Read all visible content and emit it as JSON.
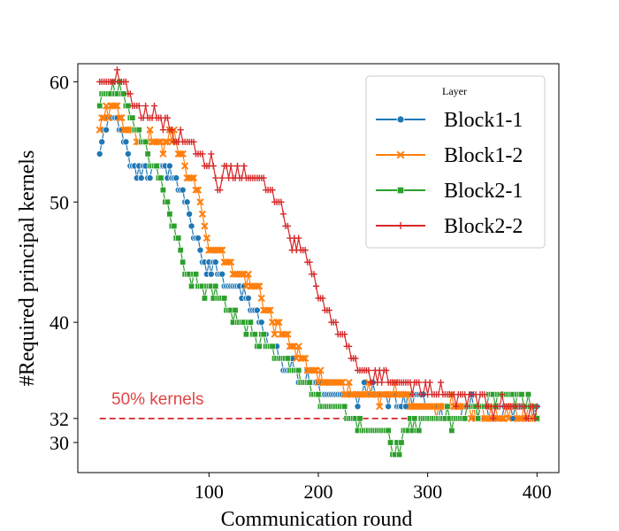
{
  "chart_data": {
    "type": "scatter",
    "title": "",
    "xlabel": "Communication round",
    "ylabel": "#Required principal kernels",
    "xlim": [
      -20,
      420
    ],
    "ylim": [
      27.5,
      61.5
    ],
    "xticks": [
      100,
      200,
      300,
      400
    ],
    "yticks": [
      30,
      32,
      40,
      50,
      60
    ],
    "legend": {
      "title": "Layer",
      "position": "top-right"
    },
    "reference_line": {
      "y": 32,
      "x_range": [
        0,
        400
      ],
      "label": "50% kernels",
      "color": "#d62728",
      "style": "dashed"
    },
    "series": [
      {
        "name": "Block1-1",
        "color": "#1f77b4",
        "marker": "circle",
        "keypoints": [
          [
            0,
            55
          ],
          [
            10,
            57
          ],
          [
            20,
            56
          ],
          [
            25,
            54
          ],
          [
            30,
            53
          ],
          [
            40,
            52
          ],
          [
            55,
            53
          ],
          [
            70,
            52
          ],
          [
            85,
            48
          ],
          [
            95,
            45
          ],
          [
            110,
            44
          ],
          [
            125,
            43
          ],
          [
            140,
            41
          ],
          [
            150,
            39
          ],
          [
            165,
            37
          ],
          [
            175,
            36
          ],
          [
            190,
            35
          ],
          [
            215,
            34
          ],
          [
            240,
            34
          ],
          [
            265,
            34
          ],
          [
            275,
            33
          ],
          [
            290,
            34
          ],
          [
            300,
            33
          ],
          [
            320,
            32
          ],
          [
            340,
            33
          ],
          [
            360,
            32
          ],
          [
            380,
            33
          ],
          [
            400,
            33
          ]
        ]
      },
      {
        "name": "Block1-2",
        "color": "#ff7f0e",
        "marker": "x",
        "keypoints": [
          [
            0,
            56
          ],
          [
            10,
            58
          ],
          [
            20,
            57
          ],
          [
            40,
            55
          ],
          [
            55,
            55
          ],
          [
            70,
            55
          ],
          [
            85,
            52
          ],
          [
            95,
            48
          ],
          [
            105,
            46
          ],
          [
            125,
            44
          ],
          [
            140,
            43
          ],
          [
            160,
            40
          ],
          [
            175,
            38
          ],
          [
            190,
            36
          ],
          [
            210,
            35
          ],
          [
            240,
            34
          ],
          [
            270,
            34
          ],
          [
            290,
            33
          ],
          [
            310,
            33
          ],
          [
            335,
            33
          ],
          [
            360,
            32
          ],
          [
            380,
            33
          ],
          [
            400,
            32
          ]
        ]
      },
      {
        "name": "Block2-1",
        "color": "#2ca02c",
        "marker": "square",
        "keypoints": [
          [
            0,
            58
          ],
          [
            15,
            60
          ],
          [
            25,
            58
          ],
          [
            40,
            55
          ],
          [
            50,
            53
          ],
          [
            60,
            50
          ],
          [
            70,
            47
          ],
          [
            80,
            44
          ],
          [
            90,
            43
          ],
          [
            110,
            42
          ],
          [
            125,
            40
          ],
          [
            140,
            39
          ],
          [
            155,
            38
          ],
          [
            165,
            37
          ],
          [
            180,
            36
          ],
          [
            195,
            34
          ],
          [
            205,
            33
          ],
          [
            220,
            33
          ],
          [
            235,
            32
          ],
          [
            245,
            31
          ],
          [
            260,
            31
          ],
          [
            270,
            29
          ],
          [
            280,
            31
          ],
          [
            295,
            32
          ],
          [
            310,
            32
          ],
          [
            330,
            32
          ],
          [
            350,
            33
          ],
          [
            370,
            34
          ],
          [
            385,
            34
          ],
          [
            400,
            33
          ]
        ]
      },
      {
        "name": "Block2-2",
        "color": "#d62728",
        "marker": "plus",
        "keypoints": [
          [
            0,
            60
          ],
          [
            20,
            60
          ],
          [
            35,
            58
          ],
          [
            55,
            57
          ],
          [
            65,
            56
          ],
          [
            80,
            55
          ],
          [
            95,
            54
          ],
          [
            105,
            53
          ],
          [
            108,
            50
          ],
          [
            115,
            53
          ],
          [
            130,
            52
          ],
          [
            145,
            52
          ],
          [
            155,
            51
          ],
          [
            165,
            50
          ],
          [
            175,
            47
          ],
          [
            185,
            46
          ],
          [
            195,
            44
          ],
          [
            210,
            41
          ],
          [
            225,
            38
          ],
          [
            240,
            36
          ],
          [
            255,
            35
          ],
          [
            270,
            35
          ],
          [
            285,
            35
          ],
          [
            300,
            34
          ],
          [
            320,
            34
          ],
          [
            345,
            34
          ],
          [
            360,
            33
          ],
          [
            375,
            33
          ],
          [
            390,
            33
          ],
          [
            400,
            32
          ]
        ]
      }
    ]
  }
}
